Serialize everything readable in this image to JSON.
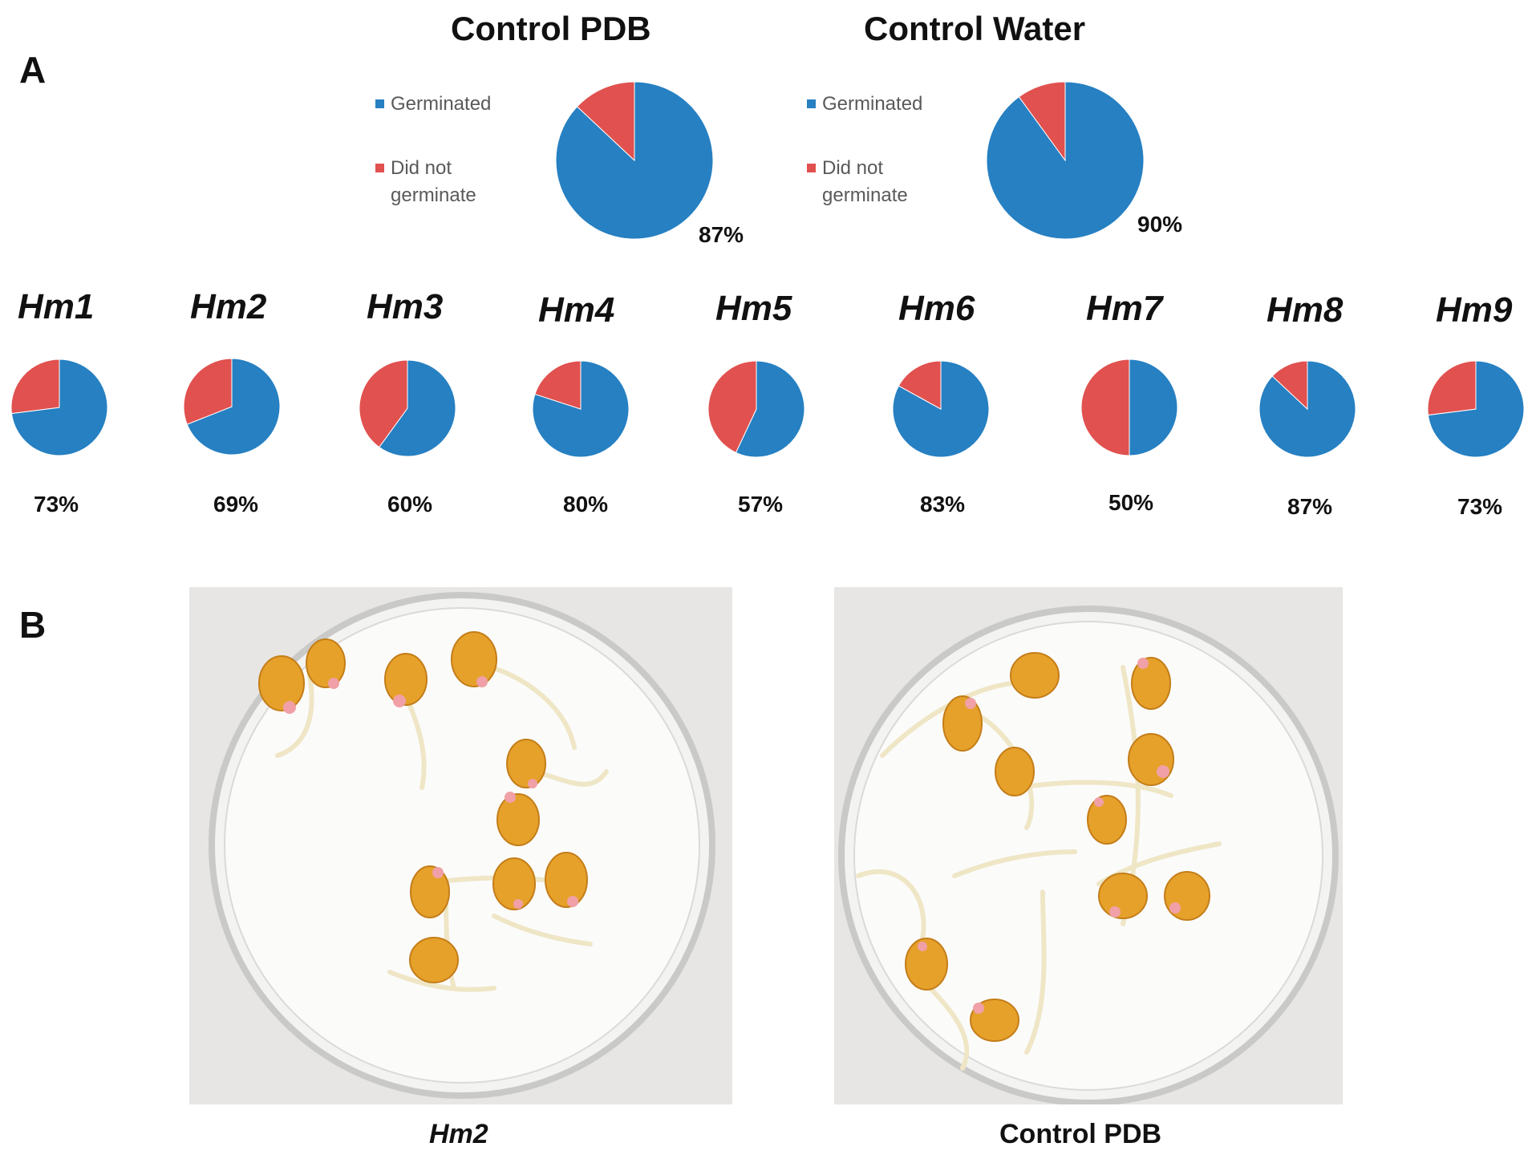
{
  "panel_a": {
    "label": "A"
  },
  "panel_b": {
    "label": "B"
  },
  "colors": {
    "germinated": "#2680c2",
    "not_germinated": "#e0514f"
  },
  "chart_data": [
    {
      "type": "pie",
      "title": "Control PDB",
      "slice_labels": [
        "Germinated",
        "Did not germinate"
      ],
      "values": [
        87,
        13
      ],
      "data_label": "87%",
      "legend": "left"
    },
    {
      "type": "pie",
      "title": "Control Water",
      "slice_labels": [
        "Germinated",
        "Did not germinate"
      ],
      "values": [
        90,
        10
      ],
      "data_label": "90%",
      "legend": "left"
    },
    {
      "type": "pie",
      "title": "Hm1",
      "slice_labels": [
        "Germinated",
        "Did not germinate"
      ],
      "values": [
        73,
        27
      ],
      "data_label": "73%"
    },
    {
      "type": "pie",
      "title": "Hm2",
      "slice_labels": [
        "Germinated",
        "Did not germinate"
      ],
      "values": [
        69,
        31
      ],
      "data_label": "69%"
    },
    {
      "type": "pie",
      "title": "Hm3",
      "slice_labels": [
        "Germinated",
        "Did not germinate"
      ],
      "values": [
        60,
        40
      ],
      "data_label": "60%"
    },
    {
      "type": "pie",
      "title": "Hm4",
      "slice_labels": [
        "Germinated",
        "Did not germinate"
      ],
      "values": [
        80,
        20
      ],
      "data_label": "80%"
    },
    {
      "type": "pie",
      "title": "Hm5",
      "slice_labels": [
        "Germinated",
        "Did not germinate"
      ],
      "values": [
        57,
        43
      ],
      "data_label": "57%"
    },
    {
      "type": "pie",
      "title": "Hm6",
      "slice_labels": [
        "Germinated",
        "Did not germinate"
      ],
      "values": [
        83,
        17
      ],
      "data_label": "83%"
    },
    {
      "type": "pie",
      "title": "Hm7",
      "slice_labels": [
        "Germinated",
        "Did not germinate"
      ],
      "values": [
        50,
        50
      ],
      "data_label": "50%"
    },
    {
      "type": "pie",
      "title": "Hm8",
      "slice_labels": [
        "Germinated",
        "Did not germinate"
      ],
      "values": [
        87,
        13
      ],
      "data_label": "87%"
    },
    {
      "type": "pie",
      "title": "Hm9",
      "slice_labels": [
        "Germinated",
        "Did not germinate"
      ],
      "values": [
        73,
        27
      ],
      "data_label": "73%"
    }
  ],
  "photos": [
    {
      "caption": "Hm2",
      "description_icon": "petri-dish-photo"
    },
    {
      "caption": "Control PDB",
      "description_icon": "petri-dish-photo"
    }
  ]
}
